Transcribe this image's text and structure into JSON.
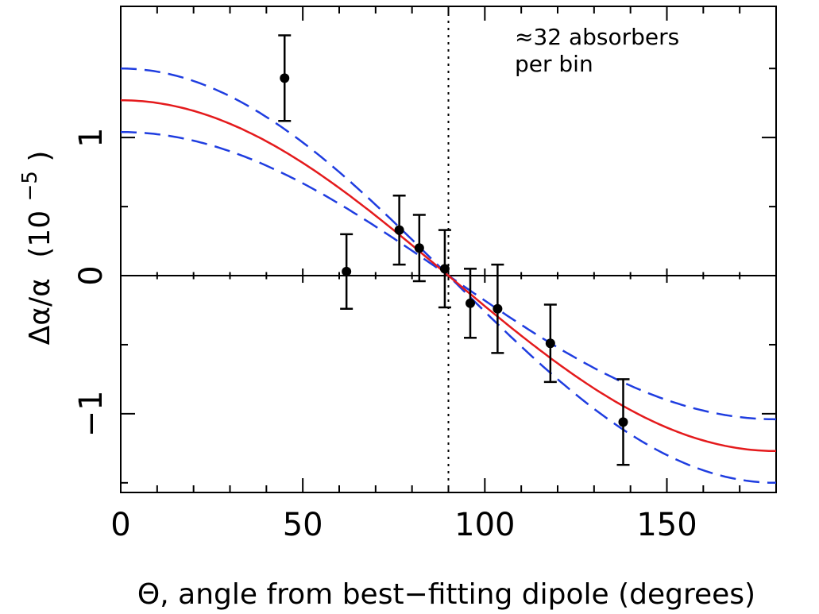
{
  "chart_data": {
    "type": "scatter",
    "xlabel": "Θ, angle from best−fitting dipole (degrees)",
    "ylabel_main": "Δα/α",
    "ylabel_unit": "(10",
    "ylabel_exp": "−5",
    "ylabel_close": ")",
    "annotation_line1": "≈32 absorbers",
    "annotation_line2": "per bin",
    "xlim": [
      0,
      180
    ],
    "ylim": [
      -1.57,
      1.95
    ],
    "x_ticks": [
      0,
      50,
      100,
      150
    ],
    "x_tick_labels": [
      "0",
      "50",
      "100",
      "150"
    ],
    "y_ticks": [
      -1,
      0,
      1
    ],
    "y_tick_labels": [
      "−1",
      "0",
      "1"
    ],
    "zero_line": 0,
    "vertical_line_x": 90,
    "points": [
      {
        "x": 45,
        "y": 1.43,
        "err": 0.31
      },
      {
        "x": 62,
        "y": 0.03,
        "err": 0.27
      },
      {
        "x": 76.5,
        "y": 0.33,
        "err": 0.25
      },
      {
        "x": 82,
        "y": 0.2,
        "err": 0.24
      },
      {
        "x": 89,
        "y": 0.05,
        "err": 0.28
      },
      {
        "x": 96,
        "y": -0.2,
        "err": 0.25
      },
      {
        "x": 103.5,
        "y": -0.24,
        "err": 0.32
      },
      {
        "x": 118,
        "y": -0.49,
        "err": 0.28
      },
      {
        "x": 138,
        "y": -1.06,
        "err": 0.31
      }
    ],
    "fit_curve": {
      "type": "cosine",
      "amplitude": 1.27,
      "color": "#e41a1c"
    },
    "confidence_band": {
      "upper_amplitude": 1.5,
      "lower_amplitude": 1.04,
      "color": "#1f3de0"
    },
    "marker_color": "#000000",
    "grid": false
  }
}
